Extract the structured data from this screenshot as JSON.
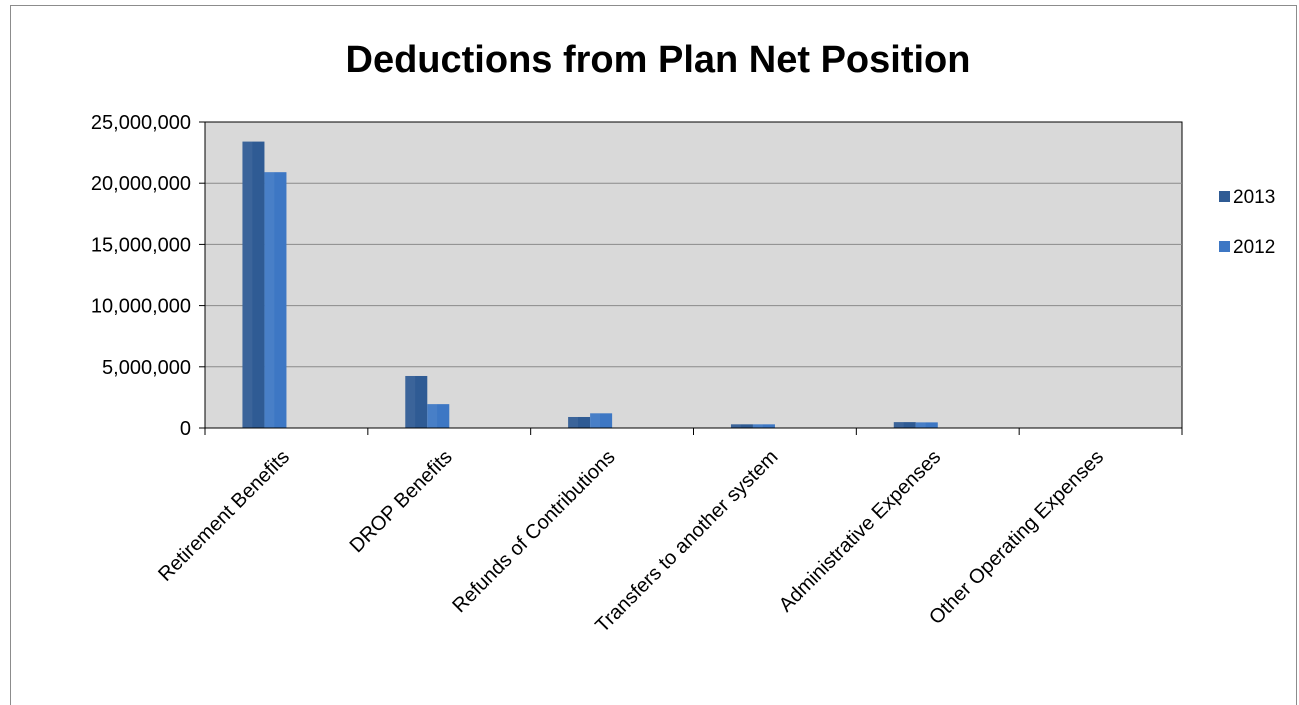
{
  "chart_data": {
    "type": "bar",
    "title": "Deductions from Plan Net Position",
    "xlabel": "",
    "ylabel": "",
    "ylim": [
      0,
      25000000
    ],
    "y_ticks": [
      "0",
      "5,000,000",
      "10,000,000",
      "15,000,000",
      "20,000,000",
      "25,000,000"
    ],
    "y_tick_values": [
      0,
      5000000,
      10000000,
      15000000,
      20000000,
      25000000
    ],
    "grid": true,
    "legend_position": "right",
    "categories": [
      "Retirement Benefits",
      "DROP Benefits",
      "Refunds of Contributions",
      "Transfers to another system",
      "Administrative Expenses",
      "Other Operating Expenses"
    ],
    "series": [
      {
        "name": "2013",
        "color": "#2f5b94",
        "values": [
          23400000,
          4250000,
          900000,
          300000,
          480000,
          0
        ]
      },
      {
        "name": "2012",
        "color": "#3d77c4",
        "values": [
          20900000,
          1950000,
          1200000,
          300000,
          460000,
          0
        ]
      }
    ]
  }
}
